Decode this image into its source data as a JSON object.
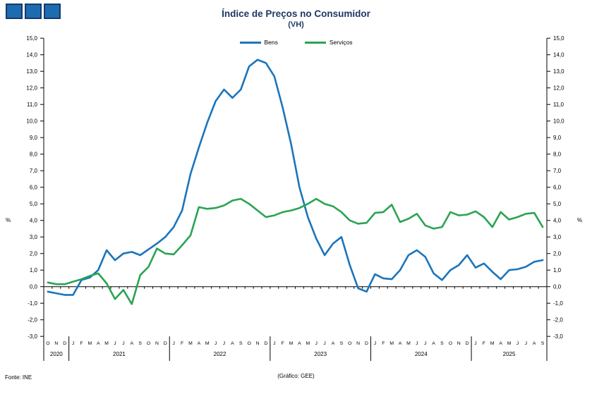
{
  "header": {
    "title": "Índice de Preços no Consumidor",
    "subtitle": "(VH)"
  },
  "legend": {
    "bens": "Bens",
    "servicos": "Serviços"
  },
  "footer": {
    "source": "Fonte: INE",
    "credit": "(Gráfico: GEE)"
  },
  "colors": {
    "bens": "#1b75bc",
    "servicos": "#2aa452",
    "title": "#1f3864",
    "axis": "#000000",
    "logo_fill": "#1e6cb0",
    "logo_border": "#123a6d"
  },
  "axis": {
    "percent_label": "%",
    "y_min": -3,
    "y_max": 15,
    "y_step": 1,
    "decimal": "comma"
  },
  "chart_data": {
    "type": "line",
    "title": "Índice de Preços no Consumidor (VH)",
    "ylabel": "%",
    "ylim": [
      -3,
      15
    ],
    "grid": false,
    "legend_position": "top",
    "x_months": [
      "O",
      "N",
      "D",
      "J",
      "F",
      "M",
      "A",
      "M",
      "J",
      "J",
      "A",
      "S",
      "O",
      "N",
      "D",
      "J",
      "F",
      "M",
      "A",
      "M",
      "J",
      "J",
      "A",
      "S",
      "O",
      "N",
      "D",
      "J",
      "F",
      "M",
      "A",
      "M",
      "J",
      "J",
      "A",
      "S",
      "O",
      "N",
      "D",
      "J",
      "F",
      "M",
      "A",
      "M",
      "J",
      "J",
      "A",
      "S",
      "O",
      "N",
      "D",
      "J",
      "F",
      "M",
      "A",
      "M",
      "J",
      "J",
      "A",
      "S"
    ],
    "x_years": [
      {
        "label": "2020",
        "months": 3
      },
      {
        "label": "2021",
        "months": 12
      },
      {
        "label": "2022",
        "months": 12
      },
      {
        "label": "2023",
        "months": 12
      },
      {
        "label": "2024",
        "months": 12
      },
      {
        "label": "2025",
        "months": 9
      }
    ],
    "series": [
      {
        "name": "Bens",
        "color": "#1b75bc",
        "values": [
          -0.3,
          -0.4,
          -0.5,
          -0.5,
          0.4,
          0.55,
          1.0,
          2.2,
          1.6,
          2.0,
          2.1,
          1.9,
          2.25,
          2.6,
          3.0,
          3.6,
          4.6,
          6.8,
          8.4,
          9.9,
          11.2,
          11.9,
          11.4,
          11.9,
          13.3,
          13.7,
          13.5,
          12.7,
          10.8,
          8.6,
          6.0,
          4.2,
          2.9,
          1.9,
          2.6,
          3.0,
          1.3,
          -0.1,
          -0.3,
          0.75,
          0.5,
          0.45,
          1.0,
          1.9,
          2.2,
          1.8,
          0.8,
          0.4,
          1.0,
          1.3,
          1.9,
          1.15,
          1.4,
          0.9,
          0.45,
          1.0,
          1.05,
          1.2,
          1.5,
          1.6
        ]
      },
      {
        "name": "Serviços",
        "color": "#2aa452",
        "values": [
          0.25,
          0.15,
          0.15,
          0.3,
          0.45,
          0.65,
          0.8,
          0.2,
          -0.75,
          -0.2,
          -1.05,
          0.7,
          1.2,
          2.3,
          2.0,
          1.95,
          2.5,
          3.1,
          4.8,
          4.7,
          4.75,
          4.9,
          5.2,
          5.3,
          5.0,
          4.6,
          4.2,
          4.3,
          4.5,
          4.6,
          4.75,
          5.0,
          5.3,
          5.0,
          4.85,
          4.5,
          4.0,
          3.8,
          3.85,
          4.45,
          4.5,
          4.95,
          3.9,
          4.1,
          4.4,
          3.7,
          3.5,
          3.6,
          4.5,
          4.3,
          4.35,
          4.55,
          4.2,
          3.6,
          4.5,
          4.05,
          4.2,
          4.4,
          4.45,
          3.6
        ]
      }
    ]
  }
}
